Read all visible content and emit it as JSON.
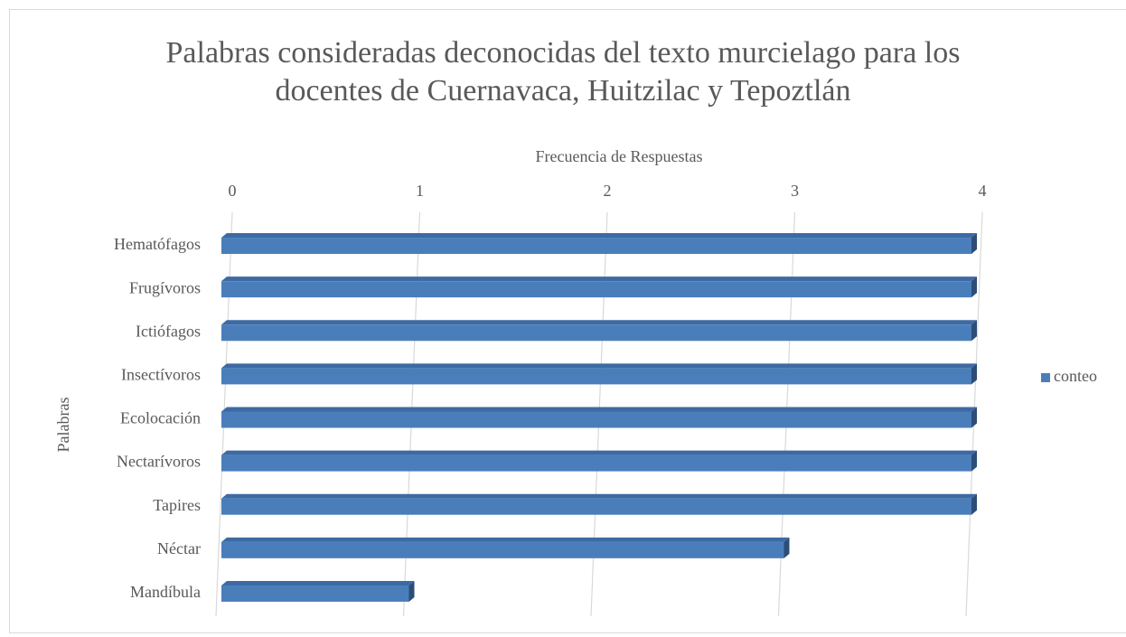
{
  "chart_data": {
    "type": "bar3d_horizontal",
    "title": "Palabras consideradas deconocidas del texto murcielago para los docentes de Cuernavaca, Huitzilac y Tepoztlán",
    "x_label": "Frecuencia de Respuestas",
    "y_label": "Palabras",
    "categories": [
      "Hematófagos",
      "Frugívoros",
      "Ictiófagos",
      "Insectívoros",
      "Ecolocación",
      "Nectarívoros",
      "Tapires",
      "Néctar",
      "Mandíbula"
    ],
    "series": [
      {
        "name": "conteo",
        "color": "#4a7ebb",
        "values": [
          4,
          4,
          4,
          4,
          4,
          4,
          4,
          3,
          1
        ]
      }
    ],
    "xlim": [
      0,
      4
    ],
    "xticks": [
      0,
      1,
      2,
      3,
      4
    ],
    "grid": true,
    "legend": "right"
  }
}
